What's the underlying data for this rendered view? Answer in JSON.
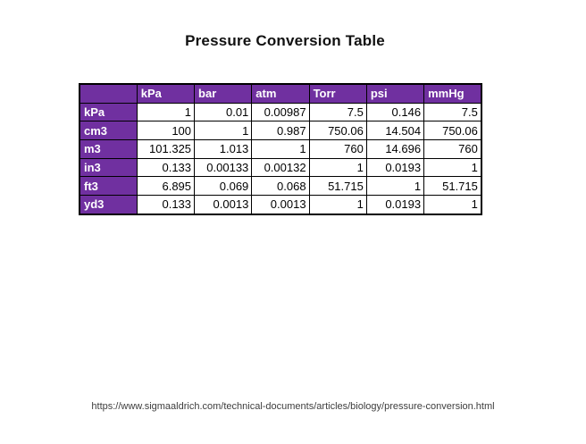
{
  "page": {
    "title": "Pressure Conversion Table",
    "source_url": "https://www.sigmaaldrich.com/technical-documents/articles/biology/pressure-conversion.html"
  },
  "colors": {
    "header_bg": "#7030A0",
    "header_text": "#FFFFFF",
    "cell_text": "#000000",
    "border": "#000000",
    "page_bg": "#FFFFFF"
  },
  "chart_data": {
    "type": "table",
    "title": "Pressure Conversion Table",
    "columns": [
      "",
      "kPa",
      "bar",
      "atm",
      "Torr",
      "psi",
      "mmHg"
    ],
    "row_labels": [
      "kPa",
      "cm3",
      "m3",
      "in3",
      "ft3",
      "yd3"
    ],
    "rows": [
      [
        1,
        0.01,
        0.00987,
        7.5,
        0.146,
        7.5
      ],
      [
        100,
        1,
        0.987,
        750.06,
        14.504,
        750.06
      ],
      [
        101.325,
        1.013,
        1,
        760,
        14.696,
        760
      ],
      [
        0.133,
        0.00133,
        0.00132,
        1,
        0.0193,
        1
      ],
      [
        6.895,
        0.069,
        0.068,
        51.715,
        1,
        51.715
      ],
      [
        0.133,
        0.0013,
        0.0013,
        1,
        0.0193,
        1
      ]
    ],
    "layout": {
      "header_style": "purple background, white bold text, left aligned",
      "cell_style": "white background, black text, right aligned",
      "grid": "black borders, thick outer border"
    }
  }
}
